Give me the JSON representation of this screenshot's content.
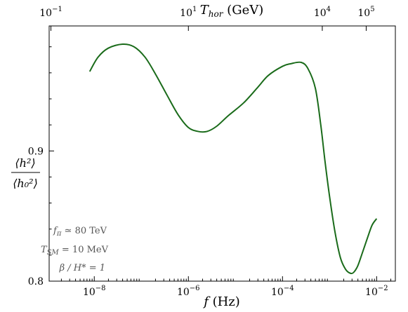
{
  "chart_data": {
    "type": "line",
    "xscale": "log",
    "xlim": [
      1.1e-09,
      0.025
    ],
    "ylim": [
      0.8,
      0.996
    ],
    "grid": false,
    "xlabel_var": "f",
    "xlabel_unit": " (Hz)",
    "ylabel_num": "⟨h²⟩",
    "ylabel_den": "⟨h₀²⟩",
    "x_ticks": [
      {
        "value": 1e-08,
        "base": "10",
        "exp": "−8"
      },
      {
        "value": 1e-06,
        "base": "10",
        "exp": "−6"
      },
      {
        "value": 0.0001,
        "base": "10",
        "exp": "−4"
      },
      {
        "value": 0.01,
        "base": "10",
        "exp": "−2"
      }
    ],
    "y_ticks": [
      {
        "value": 0.8,
        "label": "0.8"
      },
      {
        "value": 0.9,
        "label": "0.9"
      }
    ],
    "top_axis": {
      "label_var": "T",
      "label_sub": "hor",
      "label_unit": " (GeV)",
      "ticks": [
        {
          "f": 1.2e-09,
          "base": "10",
          "exp": "−1"
        },
        {
          "f": 1e-06,
          "base": "10",
          "exp": "1"
        },
        {
          "f": 0.0007,
          "base": "10",
          "exp": "4"
        },
        {
          "f": 0.006,
          "base": "10",
          "exp": "5"
        }
      ]
    },
    "annotations": [
      {
        "var": "f",
        "sub": "π",
        "rest": " ≃ 80 TeV"
      },
      {
        "var": "T",
        "sub": "SM",
        "rest": " = 10 MeV"
      },
      {
        "var": "β",
        "sub": "",
        "rest": " / H* = 1"
      }
    ],
    "series": [
      {
        "color": "#1a6b1a",
        "points": [
          [
            8e-09,
            0.961
          ],
          [
            1.2e-08,
            0.972
          ],
          [
            2e-08,
            0.979
          ],
          [
            4e-08,
            0.982
          ],
          [
            7e-08,
            0.98
          ],
          [
            1.2e-07,
            0.972
          ],
          [
            2e-07,
            0.959
          ],
          [
            3.5e-07,
            0.943
          ],
          [
            6e-07,
            0.928
          ],
          [
            1e-06,
            0.918
          ],
          [
            1.6e-06,
            0.915
          ],
          [
            2.5e-06,
            0.915
          ],
          [
            4e-06,
            0.919
          ],
          [
            7e-06,
            0.927
          ],
          [
            1.5e-05,
            0.937
          ],
          [
            3e-05,
            0.949
          ],
          [
            5e-05,
            0.958
          ],
          [
            0.0001,
            0.965
          ],
          [
            0.00015,
            0.967
          ],
          [
            0.00025,
            0.968
          ],
          [
            0.00035,
            0.963
          ],
          [
            0.0005,
            0.948
          ],
          [
            0.00065,
            0.92
          ],
          [
            0.0008,
            0.892
          ],
          [
            0.001,
            0.865
          ],
          [
            0.0013,
            0.838
          ],
          [
            0.0017,
            0.818
          ],
          [
            0.0022,
            0.809
          ],
          [
            0.0028,
            0.806
          ],
          [
            0.0033,
            0.807
          ],
          [
            0.004,
            0.812
          ],
          [
            0.005,
            0.822
          ],
          [
            0.0065,
            0.834
          ],
          [
            0.008,
            0.843
          ],
          [
            0.01,
            0.848
          ]
        ]
      }
    ]
  }
}
